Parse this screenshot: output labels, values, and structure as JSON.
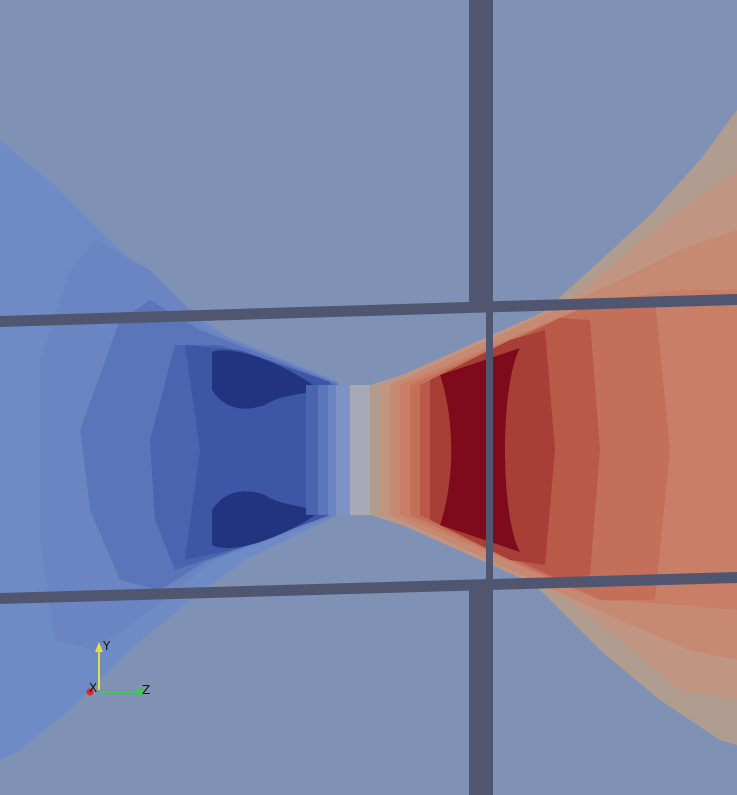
{
  "viewport": {
    "background_color": "#7f91b5",
    "grid_line_color": "#515670",
    "colormap": "cool-to-warm",
    "cold_colors": [
      "#6e8bc6",
      "#6a85c2",
      "#5b75bb",
      "#4a64b0",
      "#3e56a6",
      "#2f4296",
      "#22347f"
    ],
    "warm_colors": [
      "#b19d8f",
      "#c09582",
      "#c68a73",
      "#c97e67",
      "#c46f59",
      "#b95a49",
      "#a83f37",
      "#8e1d26",
      "#7e0a1c"
    ]
  },
  "orientation_axes": {
    "axes": [
      {
        "label": "Y",
        "color": "#e8e03a"
      },
      {
        "label": "Z",
        "color": "#3ccc4a"
      },
      {
        "label": "X",
        "color": "#e02828"
      }
    ]
  }
}
